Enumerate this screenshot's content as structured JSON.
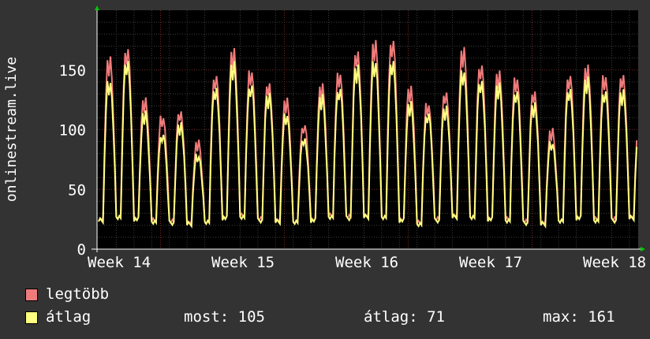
{
  "chart_data": {
    "type": "line",
    "ylabel": "onlinestream.live",
    "ylim": [
      0,
      200
    ],
    "yticks": [
      0,
      50,
      100,
      150
    ],
    "xticks": [
      "Week 14",
      "Week 15",
      "Week 16",
      "Week 17",
      "Week 18"
    ],
    "grid": true,
    "legend_position": "bottom-left",
    "series": [
      {
        "name": "legtöbb",
        "color": "#f07b7b",
        "days": [
          {
            "peak": 162,
            "trough": 25
          },
          {
            "peak": 171,
            "trough": 27
          },
          {
            "peak": 128,
            "trough": 26
          },
          {
            "peak": 113,
            "trough": 24
          },
          {
            "peak": 117,
            "trough": 23
          },
          {
            "peak": 91,
            "trough": 22
          },
          {
            "peak": 148,
            "trough": 23
          },
          {
            "peak": 170,
            "trough": 27
          },
          {
            "peak": 152,
            "trough": 28
          },
          {
            "peak": 141,
            "trough": 25
          },
          {
            "peak": 127,
            "trough": 24
          },
          {
            "peak": 106,
            "trough": 23
          },
          {
            "peak": 140,
            "trough": 25
          },
          {
            "peak": 150,
            "trough": 28
          },
          {
            "peak": 168,
            "trough": 27
          },
          {
            "peak": 176,
            "trough": 28
          },
          {
            "peak": 178,
            "trough": 27
          },
          {
            "peak": 138,
            "trough": 25
          },
          {
            "peak": 124,
            "trough": 22
          },
          {
            "peak": 133,
            "trough": 25
          },
          {
            "peak": 170,
            "trough": 28
          },
          {
            "peak": 157,
            "trough": 27
          },
          {
            "peak": 151,
            "trough": 26
          },
          {
            "peak": 146,
            "trough": 25
          },
          {
            "peak": 134,
            "trough": 23
          },
          {
            "peak": 101,
            "trough": 22
          },
          {
            "peak": 148,
            "trough": 24
          },
          {
            "peak": 156,
            "trough": 27
          },
          {
            "peak": 148,
            "trough": 25
          },
          {
            "peak": 148,
            "trough": 25
          },
          {
            "peak": 113,
            "trough": 27
          }
        ]
      },
      {
        "name": "átlag",
        "color": "#ffff80",
        "days": [
          {
            "peak": 143,
            "trough": 24
          },
          {
            "peak": 160,
            "trough": 26
          },
          {
            "peak": 116,
            "trough": 25
          },
          {
            "peak": 98,
            "trough": 23
          },
          {
            "peak": 107,
            "trough": 22
          },
          {
            "peak": 80,
            "trough": 21
          },
          {
            "peak": 137,
            "trough": 22
          },
          {
            "peak": 158,
            "trough": 26
          },
          {
            "peak": 140,
            "trough": 27
          },
          {
            "peak": 132,
            "trough": 24
          },
          {
            "peak": 115,
            "trough": 23
          },
          {
            "peak": 94,
            "trough": 22
          },
          {
            "peak": 130,
            "trough": 24
          },
          {
            "peak": 137,
            "trough": 27
          },
          {
            "peak": 156,
            "trough": 26
          },
          {
            "peak": 160,
            "trough": 27
          },
          {
            "peak": 160,
            "trough": 26
          },
          {
            "peak": 124,
            "trough": 24
          },
          {
            "peak": 116,
            "trough": 21
          },
          {
            "peak": 121,
            "trough": 24
          },
          {
            "peak": 152,
            "trough": 27
          },
          {
            "peak": 143,
            "trough": 26
          },
          {
            "peak": 140,
            "trough": 25
          },
          {
            "peak": 135,
            "trough": 24
          },
          {
            "peak": 124,
            "trough": 22
          },
          {
            "peak": 91,
            "trough": 21
          },
          {
            "peak": 136,
            "trough": 23
          },
          {
            "peak": 145,
            "trough": 26
          },
          {
            "peak": 135,
            "trough": 24
          },
          {
            "peak": 135,
            "trough": 24
          },
          {
            "peak": 105,
            "trough": 26
          }
        ]
      }
    ]
  },
  "legend": {
    "max_label": "legtöbb",
    "avg_label": "átlag",
    "now_text": "most: 105",
    "avg_text": "átlag: 71",
    "max_text": "max: 161",
    "max_color": "#f07b7b",
    "avg_color": "#ffff80"
  }
}
